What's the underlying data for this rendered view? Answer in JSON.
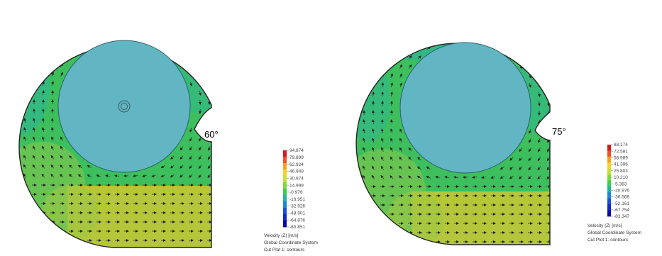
{
  "panels": [
    {
      "angle_label": "60°",
      "legend": {
        "values": [
          "94.874",
          "78.899",
          "62.924",
          "46.949",
          "30.974",
          "14.999",
          "-0.976",
          "-16.951",
          "-32.926",
          "-48.901",
          "-64.876",
          "-80.851"
        ],
        "caption": [
          "Velocity (Z) [m/s]",
          "Global Coordinate System",
          "Cut Plot 1: contours"
        ]
      }
    },
    {
      "angle_label": "75°",
      "legend": {
        "values": [
          "88.174",
          "72.581",
          "56.989",
          "41.396",
          "25.803",
          "10.210",
          "-5.383",
          "-20.976",
          "-36.568",
          "-52.161",
          "-67.754",
          "-83.347"
        ],
        "caption": [
          "Velocity (Z) [m/s]",
          "Global Coordinate System",
          "Cut Plot 1: contours"
        ]
      }
    }
  ],
  "colors": {
    "field_green": "#3cbf5c",
    "field_cyan": "#2bb3a8",
    "field_yellow": "#b4c63a",
    "impeller": "#62b6c4",
    "outline": "#222222"
  },
  "colorbar": [
    "#d7191c",
    "#f0502a",
    "#f7a21f",
    "#f5d427",
    "#c8e234",
    "#7fd93e",
    "#3ec95a",
    "#23b3a0",
    "#1f86cf",
    "#1a4fd8",
    "#1626c7",
    "#0a0aa0"
  ]
}
